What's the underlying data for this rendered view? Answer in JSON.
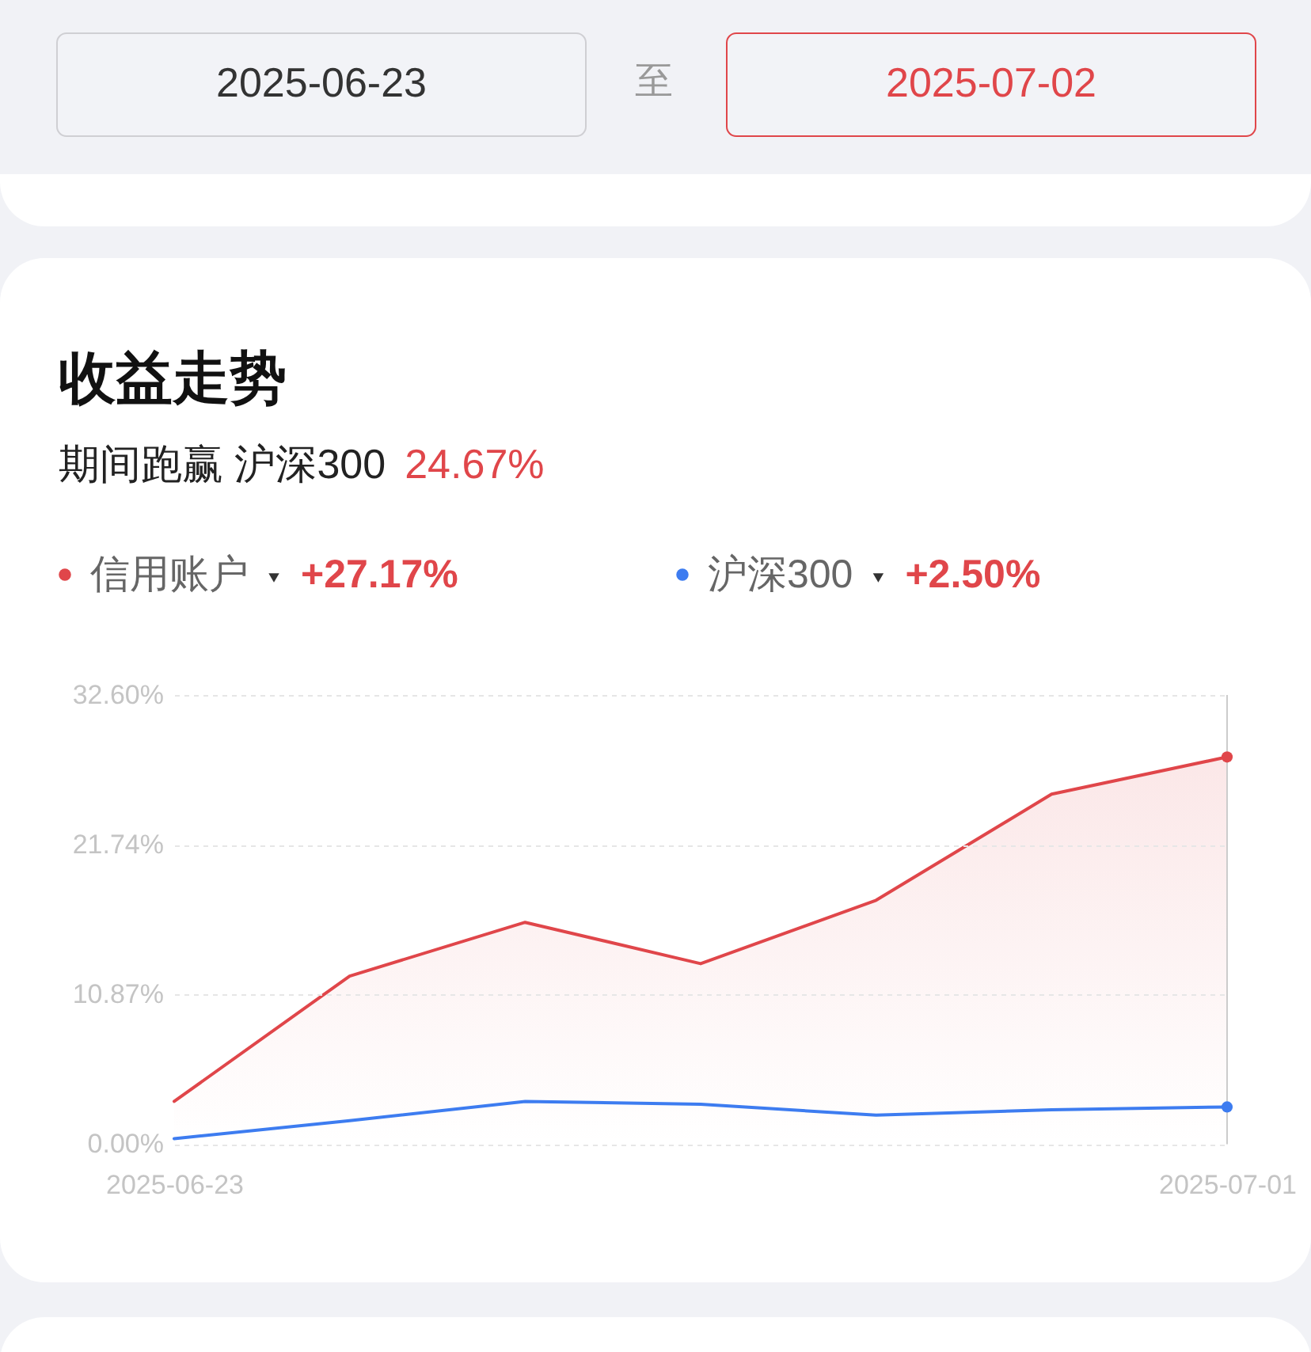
{
  "chart_data": {
    "type": "line",
    "title": "收益走势",
    "subtitle": "期间跑赢 沪深300",
    "categories": [
      "2025-06-23",
      null,
      null,
      null,
      null,
      null,
      "2025-07-01"
    ],
    "series": [
      {
        "name": "信用账户",
        "type": "area",
        "color": "#e0464a",
        "values": [
          3.1,
          12.2,
          16.1,
          13.1,
          17.7,
          25.4,
          28.1
        ]
      },
      {
        "name": "沪深300",
        "type": "line",
        "color": "#3d7cf0",
        "values": [
          0.4,
          1.7,
          3.1,
          2.9,
          2.1,
          2.5,
          2.7
        ]
      }
    ],
    "ylim": [
      0,
      32.6
    ],
    "yticks": [
      {
        "value": 0,
        "label": "0.00%"
      },
      {
        "value": 10.87,
        "label": "10.87%"
      },
      {
        "value": 21.74,
        "label": "21.74%"
      },
      {
        "value": 32.6,
        "label": "32.60%"
      }
    ],
    "grid": "y",
    "legend": "top",
    "ref_lines": [
      {
        "axis": "x",
        "value": "2025-07-01",
        "color": "#cccccc"
      }
    ],
    "annotations": [
      "2025-06-23",
      "至",
      "2025-07-02",
      "24.67%",
      "+27.17%",
      "+2.50%"
    ]
  }
}
